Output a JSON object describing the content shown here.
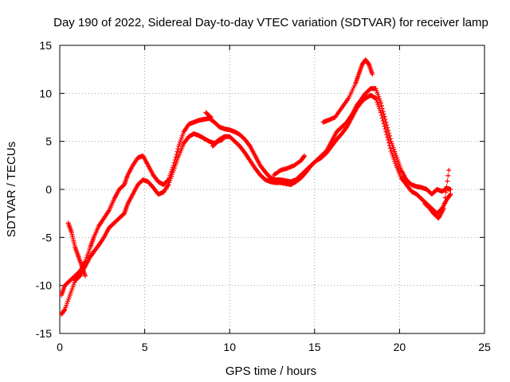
{
  "chart_data": {
    "type": "scatter",
    "title": "Day 190 of 2022, Sidereal Day-to-day VTEC variation (SDTVAR) for receiver lamp",
    "xlabel": "GPS time / hours",
    "ylabel": "SDTVAR / TECUs",
    "xlim": [
      0,
      25
    ],
    "ylim": [
      -15,
      15
    ],
    "xticks": [
      0,
      5,
      10,
      15,
      20,
      25
    ],
    "yticks": [
      -15,
      -10,
      -5,
      0,
      5,
      10,
      15
    ],
    "grid": true,
    "marker": "+",
    "series": [
      {
        "name": "upper track",
        "color": "#ff0000",
        "x": [
          0.1,
          0.3,
          0.6,
          0.9,
          1.2,
          1.5,
          1.8,
          2.0,
          2.3,
          2.6,
          2.9,
          3.2,
          3.5,
          3.8,
          4.0,
          4.3,
          4.6,
          4.9,
          5.2,
          5.5,
          5.8,
          6.1,
          6.4,
          6.7,
          7.0,
          7.3,
          7.6,
          7.9,
          8.2,
          8.5,
          8.8,
          9.1,
          9.4,
          9.7,
          10.0,
          10.3,
          10.6,
          10.9,
          11.2,
          11.5,
          11.8,
          12.1,
          12.4,
          12.7,
          13.0,
          13.3,
          13.6,
          13.9,
          14.2,
          14.5,
          14.8,
          15.1,
          15.4,
          15.7,
          16.0,
          16.3,
          16.6,
          16.9,
          17.2,
          17.5,
          17.8,
          18.0,
          18.3,
          18.6,
          18.9,
          19.2,
          19.5,
          19.8,
          20.1,
          20.4,
          20.7,
          21.0,
          21.3,
          21.6,
          21.9,
          22.2,
          22.5,
          22.8,
          23.0
        ],
        "y": [
          -11,
          -10,
          -9.5,
          -9,
          -8.5,
          -7.5,
          -6,
          -5,
          -3.8,
          -3,
          -2.2,
          -1,
          0,
          0.5,
          1.5,
          2.5,
          3.3,
          3.5,
          2.5,
          1.5,
          0.8,
          0.5,
          1,
          2.5,
          4.5,
          6,
          6.8,
          7,
          7.2,
          7.3,
          7.4,
          7,
          6.5,
          6.3,
          6.2,
          6,
          5.7,
          5.2,
          4.5,
          3.5,
          2.5,
          1.8,
          1.2,
          1,
          1,
          0.9,
          0.8,
          1,
          1.5,
          2,
          2.5,
          3,
          3.5,
          4,
          5,
          6,
          6.5,
          7,
          7.8,
          8.8,
          9.5,
          10,
          10.5,
          10.5,
          9,
          7,
          5,
          3.5,
          2,
          1,
          0.5,
          0.3,
          0.2,
          0,
          -0.5,
          0,
          -0.2,
          0.1,
          0
        ]
      },
      {
        "name": "lower track",
        "color": "#ff0000",
        "x": [
          0.1,
          0.3,
          0.6,
          0.9,
          1.2,
          1.5,
          1.8,
          2.0,
          2.3,
          2.6,
          2.9,
          3.2,
          3.5,
          3.8,
          4.0,
          4.3,
          4.6,
          4.9,
          5.2,
          5.5,
          5.8,
          6.1,
          6.4,
          6.7,
          7.0,
          7.3,
          7.6,
          7.9,
          8.2,
          8.5,
          8.8,
          9.1,
          9.4,
          9.7,
          10.0,
          10.3,
          10.6,
          10.9,
          11.2,
          11.5,
          11.8,
          12.1,
          12.4,
          12.7,
          13.0,
          13.3,
          13.6,
          13.9,
          14.2,
          14.5,
          14.8,
          15.1,
          15.4,
          15.7,
          16.0,
          16.3,
          16.6,
          16.9,
          17.2,
          17.5,
          17.8,
          18.0,
          18.3,
          18.6,
          18.9,
          19.2,
          19.5,
          19.8,
          20.1,
          20.4,
          20.7,
          21.0,
          21.3,
          21.6,
          21.9,
          22.2,
          22.5,
          22.8,
          23.0
        ],
        "y": [
          -13,
          -12.5,
          -11,
          -9.5,
          -9,
          -8,
          -7,
          -6.5,
          -5.8,
          -5,
          -4,
          -3.5,
          -3,
          -2.5,
          -1.5,
          -0.5,
          0.5,
          1,
          0.8,
          0.2,
          -0.5,
          -0.3,
          0.5,
          2,
          3.5,
          4.8,
          5.5,
          5.8,
          5.6,
          5.3,
          5,
          4.8,
          5.2,
          5.5,
          5.5,
          5,
          4.5,
          3.8,
          3,
          2.2,
          1.5,
          1,
          0.8,
          0.7,
          0.7,
          0.6,
          0.5,
          0.8,
          1.2,
          1.8,
          2.5,
          3,
          3.3,
          3.8,
          4.5,
          5.2,
          5.8,
          6.5,
          7.5,
          8.5,
          9.2,
          9.5,
          9.8,
          9.5,
          8,
          6,
          4,
          2.5,
          1.2,
          0.5,
          -0.2,
          -0.5,
          -1,
          -1.5,
          -2,
          -2.5,
          -2,
          -1,
          -0.5
        ]
      },
      {
        "name": "scattered segments",
        "color": "#ff0000",
        "x": [
          0.5,
          0.7,
          0.9,
          1.1,
          1.3,
          1.5,
          15.5,
          15.8,
          16.2,
          16.6,
          17.0,
          17.4,
          17.6,
          17.8,
          18.0,
          18.2,
          18.4,
          9.0,
          9.3,
          9.6,
          8.6,
          8.9,
          12.6,
          13.0,
          13.4,
          13.8,
          14.2,
          14.4,
          21.5,
          21.8,
          22.0,
          22.3,
          22.6,
          22.9
        ],
        "y": [
          -3.5,
          -4.5,
          -6,
          -7,
          -8,
          -9,
          7,
          7.2,
          7.5,
          8.5,
          9.5,
          11,
          12,
          13,
          13.5,
          13,
          12,
          4.5,
          5,
          5.2,
          8,
          7.5,
          1.5,
          2,
          2.2,
          2.5,
          3,
          3.5,
          -1.5,
          -2,
          -2.5,
          -3,
          -2,
          2
        ]
      }
    ]
  }
}
